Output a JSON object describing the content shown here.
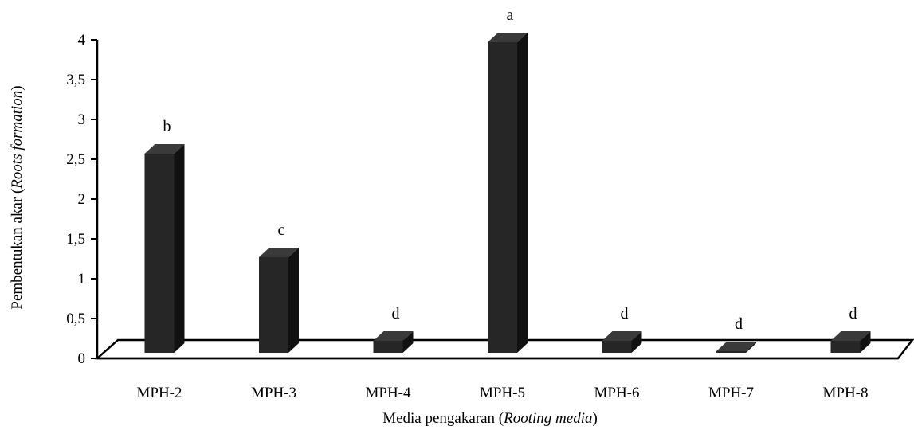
{
  "chart_data": {
    "type": "bar",
    "categories": [
      "MPH-2",
      "MPH-3",
      "MPH-4",
      "MPH-5",
      "MPH-6",
      "MPH-7",
      "MPH-8"
    ],
    "values": [
      2.5,
      1.2,
      0.15,
      3.9,
      0.15,
      0.02,
      0.15
    ],
    "significance_letters": [
      "b",
      "c",
      "d",
      "a",
      "d",
      "d",
      "d"
    ],
    "ylim": [
      0,
      4
    ],
    "yticks": [
      "0",
      "0,5",
      "1",
      "1,5",
      "2",
      "2,5",
      "3",
      "3,5",
      "4"
    ],
    "xlabel": {
      "prefix": "Media pengakaran (",
      "italic": "Rooting media",
      "suffix": ")"
    },
    "ylabel": {
      "prefix": "Pembentukan akar (",
      "italic": "Roots formation",
      "suffix": ")"
    },
    "bar_color": "#262626",
    "bar_side_color": "#111111",
    "bar_top_color": "#3a3a3a",
    "grid": false,
    "legend": "none",
    "style": "3d-column"
  }
}
